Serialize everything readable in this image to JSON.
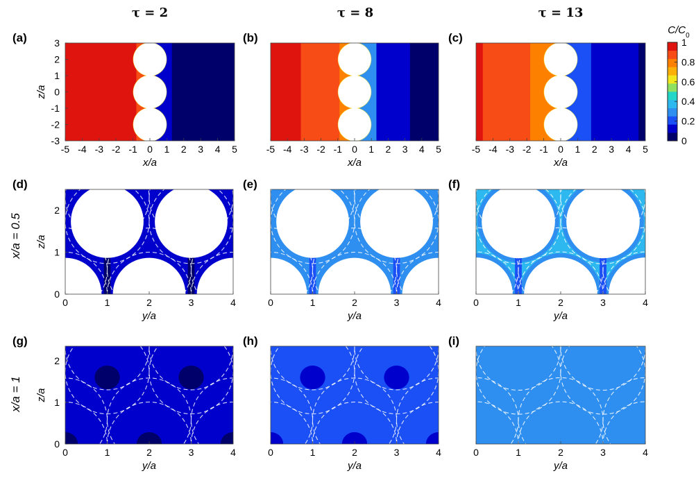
{
  "column_headers": [
    "τ = 2",
    "τ = 8",
    "τ = 13"
  ],
  "row_labels": [
    "",
    "x/a = 0.5",
    "x/a = 1"
  ],
  "colorbar": {
    "title_italic": "C/C",
    "title_sub": "0",
    "ticks": [
      "1",
      "0.8",
      "0.6",
      "0.4",
      "0.2",
      "0"
    ],
    "colors": [
      "#00006b",
      "#0000cd",
      "#1a50f5",
      "#2f8ff0",
      "#2db8f0",
      "#22d6c8",
      "#8de060",
      "#f2e61c",
      "#fbb008",
      "#fe8000",
      "#f84c16",
      "#e0140f"
    ]
  },
  "chart_data": [
    {
      "type": "heatmap",
      "panel": "(a)",
      "title": "τ = 2",
      "xlabel": "x/a",
      "ylabel": "z/a",
      "xlim": [
        -5,
        5
      ],
      "ylim": [
        -3,
        3
      ],
      "xticks": [
        "-5",
        "-4",
        "-3",
        "-2",
        "-1",
        "0",
        "1",
        "2",
        "3",
        "4",
        "5"
      ],
      "yticks": [
        "3",
        "2",
        "1",
        "0",
        "-1",
        "-2",
        "-3"
      ],
      "bands": [
        {
          "x0": -5,
          "x1": -0.8,
          "value": 1.0
        },
        {
          "x0": -0.8,
          "x1": 0.3,
          "value": 0.9
        },
        {
          "x0": 0.3,
          "x1": 1.3,
          "value": 0.15
        },
        {
          "x0": 1.3,
          "x1": 5,
          "value": 0.0
        }
      ],
      "spheres": [
        {
          "x": 0,
          "z": 2
        },
        {
          "x": 0,
          "z": 0
        },
        {
          "x": 0,
          "z": -2
        }
      ]
    },
    {
      "type": "heatmap",
      "panel": "(b)",
      "title": "τ = 8",
      "xlabel": "x/a",
      "ylabel": "",
      "xlim": [
        -5,
        5
      ],
      "ylim": [
        -3,
        3
      ],
      "xticks": [
        "-5",
        "-4",
        "-3",
        "-2",
        "-1",
        "0",
        "1",
        "2",
        "3",
        "4",
        "5"
      ],
      "yticks": [],
      "bands": [
        {
          "x0": -5,
          "x1": -3.2,
          "value": 1.0
        },
        {
          "x0": -3.2,
          "x1": -0.9,
          "value": 0.9
        },
        {
          "x0": -0.9,
          "x1": 0.3,
          "value": 0.75
        },
        {
          "x0": 0.3,
          "x1": 1.3,
          "value": 0.25
        },
        {
          "x0": 1.3,
          "x1": 3.3,
          "value": 0.15
        },
        {
          "x0": 3.3,
          "x1": 5,
          "value": 0.0
        }
      ],
      "spheres": [
        {
          "x": 0,
          "z": 2
        },
        {
          "x": 0,
          "z": 0
        },
        {
          "x": 0,
          "z": -2
        }
      ]
    },
    {
      "type": "heatmap",
      "panel": "(c)",
      "title": "τ = 13",
      "xlabel": "x/a",
      "ylabel": "",
      "xlim": [
        -5,
        5
      ],
      "ylim": [
        -3,
        3
      ],
      "xticks": [
        "-5",
        "-4",
        "-3",
        "-2",
        "-1",
        "0",
        "1",
        "2",
        "3",
        "4",
        "5"
      ],
      "yticks": [],
      "bands": [
        {
          "x0": -5,
          "x1": -4.6,
          "value": 1.0
        },
        {
          "x0": -4.6,
          "x1": -1.8,
          "value": 0.9
        },
        {
          "x0": -1.8,
          "x1": 0.3,
          "value": 0.75
        },
        {
          "x0": 0.3,
          "x1": 1.8,
          "value": 0.2
        },
        {
          "x0": 1.8,
          "x1": 4.6,
          "value": 0.15
        },
        {
          "x0": 4.6,
          "x1": 5,
          "value": 0.0
        }
      ],
      "spheres": [
        {
          "x": 0,
          "z": 2
        },
        {
          "x": 0,
          "z": 0
        },
        {
          "x": 0,
          "z": -2
        }
      ]
    },
    {
      "type": "heatmap",
      "panel": "(d)",
      "title": "",
      "xlabel": "y/a",
      "ylabel": "z/a",
      "row_label": "x/a = 0.5",
      "xlim": [
        0,
        4
      ],
      "ylim": [
        0,
        2.5
      ],
      "xticks": [
        "0",
        "1",
        "2",
        "3",
        "4"
      ],
      "yticks": [
        "2",
        "1",
        "0"
      ],
      "background_value": 0.15,
      "ring_value": 0.1,
      "gap_value": 0.05,
      "cut_circles": [
        {
          "y": 0,
          "z": 0,
          "r": 0.866
        },
        {
          "y": 2,
          "z": 0,
          "r": 0.866
        },
        {
          "y": 4,
          "z": 0,
          "r": 0.866
        },
        {
          "y": 1,
          "z": 1.732,
          "r": 0.866
        },
        {
          "y": 3,
          "z": 1.732,
          "r": 0.866
        }
      ],
      "dashed_circles": [
        {
          "y": 0,
          "z": 0
        },
        {
          "y": 2,
          "z": 0
        },
        {
          "y": 4,
          "z": 0
        },
        {
          "y": 1,
          "z": 1.732
        },
        {
          "y": 3,
          "z": 1.732
        },
        {
          "y": 0,
          "z": 0.577
        },
        {
          "y": 2,
          "z": 0.577
        },
        {
          "y": 4,
          "z": 0.577
        },
        {
          "y": 1,
          "z": 2.309
        },
        {
          "y": 3,
          "z": 2.309
        }
      ]
    },
    {
      "type": "heatmap",
      "panel": "(e)",
      "title": "",
      "xlabel": "y/a",
      "ylabel": "",
      "xlim": [
        0,
        4
      ],
      "ylim": [
        0,
        2.5
      ],
      "xticks": [
        "0",
        "1",
        "2",
        "3",
        "4"
      ],
      "yticks": [],
      "background_value": 0.3,
      "ring_value": 0.27,
      "gap_value": 0.2,
      "cut_circles": [
        {
          "y": 0,
          "z": 0,
          "r": 0.866
        },
        {
          "y": 2,
          "z": 0,
          "r": 0.866
        },
        {
          "y": 4,
          "z": 0,
          "r": 0.866
        },
        {
          "y": 1,
          "z": 1.732,
          "r": 0.866
        },
        {
          "y": 3,
          "z": 1.732,
          "r": 0.866
        }
      ],
      "dashed_circles": [
        {
          "y": 0,
          "z": 0
        },
        {
          "y": 2,
          "z": 0
        },
        {
          "y": 4,
          "z": 0
        },
        {
          "y": 1,
          "z": 1.732
        },
        {
          "y": 3,
          "z": 1.732
        },
        {
          "y": 0,
          "z": 0.577
        },
        {
          "y": 2,
          "z": 0.577
        },
        {
          "y": 4,
          "z": 0.577
        },
        {
          "y": 1,
          "z": 2.309
        },
        {
          "y": 3,
          "z": 2.309
        }
      ]
    },
    {
      "type": "heatmap",
      "panel": "(f)",
      "title": "",
      "xlabel": "y/a",
      "ylabel": "",
      "xlim": [
        0,
        4
      ],
      "ylim": [
        0,
        2.5
      ],
      "xticks": [
        "0",
        "1",
        "2",
        "3",
        "4"
      ],
      "yticks": [],
      "background_value": 0.4,
      "ring_value": 0.3,
      "gap_value": 0.18,
      "cut_circles": [
        {
          "y": 0,
          "z": 0,
          "r": 0.866
        },
        {
          "y": 2,
          "z": 0,
          "r": 0.866
        },
        {
          "y": 4,
          "z": 0,
          "r": 0.866
        },
        {
          "y": 1,
          "z": 1.732,
          "r": 0.866
        },
        {
          "y": 3,
          "z": 1.732,
          "r": 0.866
        }
      ],
      "dashed_circles": [
        {
          "y": 0,
          "z": 0
        },
        {
          "y": 2,
          "z": 0
        },
        {
          "y": 4,
          "z": 0
        },
        {
          "y": 1,
          "z": 1.732
        },
        {
          "y": 3,
          "z": 1.732
        },
        {
          "y": 0,
          "z": 0.577
        },
        {
          "y": 2,
          "z": 0.577
        },
        {
          "y": 4,
          "z": 0.577
        },
        {
          "y": 1,
          "z": 2.309
        },
        {
          "y": 3,
          "z": 2.309
        }
      ]
    },
    {
      "type": "heatmap",
      "panel": "(g)",
      "title": "",
      "xlabel": "y/a",
      "ylabel": "z/a",
      "row_label": "x/a = 1",
      "xlim": [
        0,
        4
      ],
      "ylim": [
        0,
        2.35
      ],
      "xticks": [
        "0",
        "1",
        "2",
        "3",
        "4"
      ],
      "yticks": [
        "2",
        "1",
        "0"
      ],
      "background_value": 0.15,
      "spot_value": 0.02,
      "spot_radius": 0.3,
      "spots": [
        {
          "y": 0,
          "z": 0
        },
        {
          "y": 2,
          "z": 0
        },
        {
          "y": 4,
          "z": 0
        },
        {
          "y": 1,
          "z": 1.6
        },
        {
          "y": 3,
          "z": 1.6
        }
      ],
      "dashed_circles": [
        {
          "y": 0,
          "z": 0
        },
        {
          "y": 2,
          "z": 0
        },
        {
          "y": 4,
          "z": 0
        },
        {
          "y": 1,
          "z": 1.732
        },
        {
          "y": 3,
          "z": 1.732
        },
        {
          "y": 0,
          "z": 0.577
        },
        {
          "y": 2,
          "z": 0.577
        },
        {
          "y": 4,
          "z": 0.577
        },
        {
          "y": 1,
          "z": 2.309
        },
        {
          "y": 3,
          "z": 2.309
        }
      ]
    },
    {
      "type": "heatmap",
      "panel": "(h)",
      "title": "",
      "xlabel": "y/a",
      "ylabel": "",
      "xlim": [
        0,
        4
      ],
      "ylim": [
        0,
        2.35
      ],
      "xticks": [
        "0",
        "1",
        "2",
        "3",
        "4"
      ],
      "yticks": [],
      "background_value": 0.22,
      "spot_value": 0.15,
      "spot_radius": 0.3,
      "spots": [
        {
          "y": 0,
          "z": 0
        },
        {
          "y": 2,
          "z": 0
        },
        {
          "y": 4,
          "z": 0
        },
        {
          "y": 1,
          "z": 1.6
        },
        {
          "y": 3,
          "z": 1.6
        }
      ],
      "dashed_circles": [
        {
          "y": 0,
          "z": 0
        },
        {
          "y": 2,
          "z": 0
        },
        {
          "y": 4,
          "z": 0
        },
        {
          "y": 1,
          "z": 1.732
        },
        {
          "y": 3,
          "z": 1.732
        },
        {
          "y": 0,
          "z": 0.577
        },
        {
          "y": 2,
          "z": 0.577
        },
        {
          "y": 4,
          "z": 0.577
        },
        {
          "y": 1,
          "z": 2.309
        },
        {
          "y": 3,
          "z": 2.309
        }
      ]
    },
    {
      "type": "heatmap",
      "panel": "(i)",
      "title": "",
      "xlabel": "y/a",
      "ylabel": "",
      "xlim": [
        0,
        4
      ],
      "ylim": [
        0,
        2.35
      ],
      "xticks": [
        "0",
        "1",
        "2",
        "3",
        "4"
      ],
      "yticks": [],
      "background_value": 0.3,
      "spots": [],
      "dashed_circles": [
        {
          "y": 0,
          "z": 0
        },
        {
          "y": 2,
          "z": 0
        },
        {
          "y": 4,
          "z": 0
        },
        {
          "y": 1,
          "z": 1.732
        },
        {
          "y": 3,
          "z": 1.732
        },
        {
          "y": 0,
          "z": 0.577
        },
        {
          "y": 2,
          "z": 0.577
        },
        {
          "y": 4,
          "z": 0.577
        },
        {
          "y": 1,
          "z": 2.309
        },
        {
          "y": 3,
          "z": 2.309
        }
      ]
    }
  ]
}
